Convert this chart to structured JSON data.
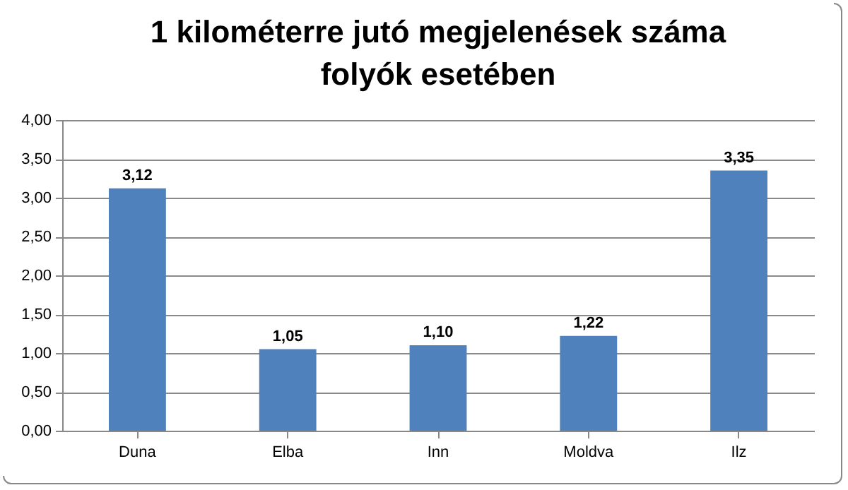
{
  "chart_data": {
    "type": "bar",
    "title": "1 kilométerre jutó megjelenések száma folyók esetében",
    "categories": [
      "Duna",
      "Elba",
      "Inn",
      "Moldva",
      "Ilz"
    ],
    "values": [
      3.12,
      1.05,
      1.1,
      1.22,
      3.35
    ],
    "value_labels": [
      "3,12",
      "1,05",
      "1,10",
      "1,22",
      "3,35"
    ],
    "color": "#4f81bd",
    "ylim": [
      0,
      4
    ],
    "yticks": [
      {
        "value": 0,
        "label": "0,00"
      },
      {
        "value": 0.5,
        "label": "0,50"
      },
      {
        "value": 1,
        "label": "1,00"
      },
      {
        "value": 1.5,
        "label": "1,50"
      },
      {
        "value": 2,
        "label": "2,00"
      },
      {
        "value": 2.5,
        "label": "2,50"
      },
      {
        "value": 3,
        "label": "3,00"
      },
      {
        "value": 3.5,
        "label": "3,50"
      },
      {
        "value": 4,
        "label": "4,00"
      }
    ],
    "grid": "y"
  }
}
